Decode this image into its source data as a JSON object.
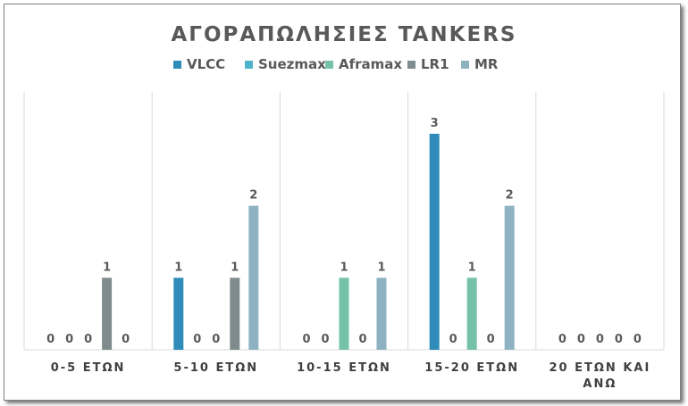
{
  "chart_data": {
    "type": "bar",
    "title": "ΑΓΟΡΑΠΩΛΗΣΙΕΣ TANKERS",
    "categories": [
      [
        "0-5 ΕΤΩΝ"
      ],
      [
        "5-10 ΕΤΩΝ"
      ],
      [
        "10-15 ΕΤΩΝ"
      ],
      [
        "15-20 ΕΤΩΝ"
      ],
      [
        "20 ΕΤΩΝ ΚΑΙ",
        "ΑΝΩ"
      ]
    ],
    "series": [
      {
        "name": "VLCC",
        "color": "#2f8cba",
        "values": [
          0,
          1,
          0,
          3,
          0
        ]
      },
      {
        "name": "Suezmax",
        "color": "#4fb3c9",
        "values": [
          0,
          0,
          0,
          0,
          0
        ]
      },
      {
        "name": "Aframax",
        "color": "#76c2a6",
        "values": [
          0,
          0,
          1,
          1,
          0
        ]
      },
      {
        "name": "LR1",
        "color": "#7f8c8d",
        "values": [
          1,
          1,
          0,
          0,
          0
        ]
      },
      {
        "name": "MR",
        "color": "#8fb2c2",
        "values": [
          0,
          2,
          1,
          2,
          0
        ]
      }
    ],
    "ylim": [
      0,
      3
    ],
    "grid": false,
    "legend": "top-center",
    "data_labels": true
  }
}
